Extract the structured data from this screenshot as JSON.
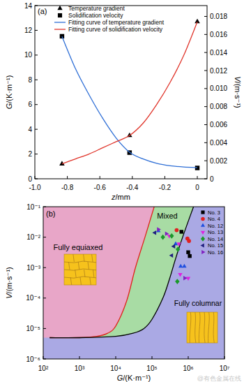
{
  "chart_data": [
    {
      "type": "line",
      "title": "(a)",
      "x_label": "z/mm",
      "y_label": "G/(K·m⁻¹)",
      "y2_label": "V/(m·s⁻¹)",
      "xlim": [
        -1.0,
        0.06
      ],
      "xticks": [
        {
          "value": -1.0,
          "label": "-1.0"
        },
        -0.8,
        -0.6,
        -0.4,
        -0.2,
        0
      ],
      "ylim": [
        0,
        14
      ],
      "yticks": [
        0,
        2,
        4,
        6,
        8,
        10,
        12,
        14
      ],
      "y2lim": [
        0,
        0.0192
      ],
      "y2ticks": [
        0,
        0.002,
        0.004,
        0.006,
        0.008,
        {
          "value": 0.01,
          "label": "0.010"
        },
        0.012,
        0.014,
        0.016,
        0.018
      ],
      "legend": "upper left",
      "series": [
        {
          "name": "Temperature gradient",
          "type": "scatter",
          "marker": "triangle",
          "color": "#000000",
          "x": [
            -0.833,
            -0.417,
            0
          ],
          "values": [
            1.2,
            3.5,
            12.7
          ]
        },
        {
          "name": "Solidification velocity",
          "type": "scatter",
          "marker": "square",
          "color": "#000000",
          "axis": "y2",
          "x": [
            -0.833,
            -0.417,
            0
          ],
          "values": [
            0.0158,
            0.0029,
            0.0012
          ]
        },
        {
          "name": "Fitting curve of temperature gradient",
          "type": "line",
          "line_style": "solid",
          "color": "#2f6fd6",
          "x": [
            -0.833,
            -0.75,
            -0.667,
            -0.583,
            -0.5,
            -0.417,
            -0.333,
            -0.25,
            -0.167,
            -0.083,
            0
          ],
          "values": [
            11.5,
            8.9,
            6.8,
            4.9,
            3.3,
            2.15,
            1.6,
            1.25,
            1.05,
            0.95,
            0.9
          ]
        },
        {
          "name": "Fitting curve of solidification velocity",
          "type": "line",
          "line_style": "solid",
          "color": "#e0342a",
          "axis": "y2",
          "x": [
            -0.833,
            -0.75,
            -0.667,
            -0.583,
            -0.5,
            -0.417,
            -0.333,
            -0.25,
            -0.167,
            -0.083,
            0
          ],
          "values": [
            0.00165,
            0.0022,
            0.00274,
            0.00343,
            0.00411,
            0.0048,
            0.00617,
            0.00823,
            0.0107,
            0.0137,
            0.0174
          ]
        }
      ]
    },
    {
      "type": "scatter",
      "title": "(b)",
      "x_label": "G/(K·m⁻¹)",
      "y_label": "V/(m·s⁻¹)",
      "log": true,
      "xlim": [
        100,
        10000000
      ],
      "xticks": [
        {
          "value": 100,
          "label": "10²"
        },
        {
          "value": 1000,
          "label": "10³"
        },
        {
          "value": 10000,
          "label": "10⁴"
        },
        {
          "value": 100000,
          "label": "10⁵"
        },
        {
          "value": 1000000,
          "label": "10⁶"
        },
        {
          "value": 10000000,
          "label": "10⁷"
        }
      ],
      "ylim": [
        1e-06,
        0.1
      ],
      "yticks": [
        {
          "value": 1e-06,
          "label": "10⁻⁶"
        },
        {
          "value": 1e-05,
          "label": "10⁻⁵"
        },
        {
          "value": 0.0001,
          "label": "10⁻⁴"
        },
        {
          "value": 0.001,
          "label": "10⁻³"
        },
        {
          "value": 0.01,
          "label": "10⁻²"
        },
        {
          "value": 0.1,
          "label": "10⁻¹"
        }
      ],
      "legend": "upper right",
      "annotations": [
        {
          "text": "Fully equiaxed",
          "color": "#e8a6c8"
        },
        {
          "text": "Mixed",
          "color": "#a8dca4"
        },
        {
          "text": "Fully columnar",
          "color": "#aaa9e4"
        }
      ],
      "series": [
        {
          "type": "line",
          "line_style": "solid",
          "color": "#e0241b",
          "x": [
            150,
            1000,
            3000,
            6000,
            10000,
            20000,
            35000,
            64000,
            115000
          ],
          "values": [
            5e-06,
            5e-06,
            5.5e-06,
            7e-06,
            1.2e-05,
            8e-05,
            0.001,
            0.01,
            0.1
          ]
        },
        {
          "type": "line",
          "line_style": "solid",
          "color": "#000000",
          "x": [
            150,
            1000,
            10000,
            30000,
            60000,
            100000,
            200000,
            300000,
            450000,
            700000,
            1400000
          ],
          "values": [
            5e-06,
            5e-06,
            5.5e-06,
            7e-06,
            1e-05,
            2e-05,
            0.0001,
            0.0004,
            0.002,
            0.01,
            0.1
          ]
        },
        {
          "name": "No. 3",
          "type": "scatter",
          "marker": "square",
          "color": "#000000",
          "x": [
            650000,
            1000000,
            1100000
          ],
          "values": [
            0.015,
            0.0032,
            0.0024
          ]
        },
        {
          "name": "No. 4",
          "type": "scatter",
          "marker": "circle",
          "color": "#e02020",
          "x": [
            480000,
            950000,
            1050000
          ],
          "values": [
            0.017,
            0.009,
            0.0075
          ]
        },
        {
          "name": "No. 12",
          "type": "scatter",
          "marker": "triangle",
          "color": "#1f4fe0",
          "x": [
            150000,
            450000,
            620000,
            780000
          ],
          "values": [
            0.016,
            0.006,
            0.0011,
            0.0011
          ]
        },
        {
          "name": "No. 13",
          "type": "scatter",
          "marker": "triangle-down",
          "color": "#e020e0",
          "x": [
            300000,
            550000,
            600000,
            1000000
          ],
          "values": [
            0.011,
            0.006,
            0.0006,
            0.00045
          ]
        },
        {
          "name": "No. 14",
          "type": "scatter",
          "marker": "diamond",
          "color": "#1a9a2a",
          "x": [
            200000,
            350000,
            520000,
            500000
          ],
          "values": [
            0.01,
            0.011,
            0.004,
            0.00035
          ]
        },
        {
          "name": "No. 15",
          "type": "scatter",
          "marker": "triangle-left",
          "color": "#202080",
          "x": [
            120000,
            350000,
            400000
          ],
          "values": [
            0.014,
            0.0025,
            0.005
          ]
        },
        {
          "name": "No. 16",
          "type": "scatter",
          "marker": "triangle-right",
          "color": "#8020c0",
          "x": [
            150000,
            250000,
            800000
          ],
          "values": [
            0.018,
            0.013,
            0.00045
          ]
        }
      ]
    }
  ],
  "watermark": "@有色金属在线"
}
